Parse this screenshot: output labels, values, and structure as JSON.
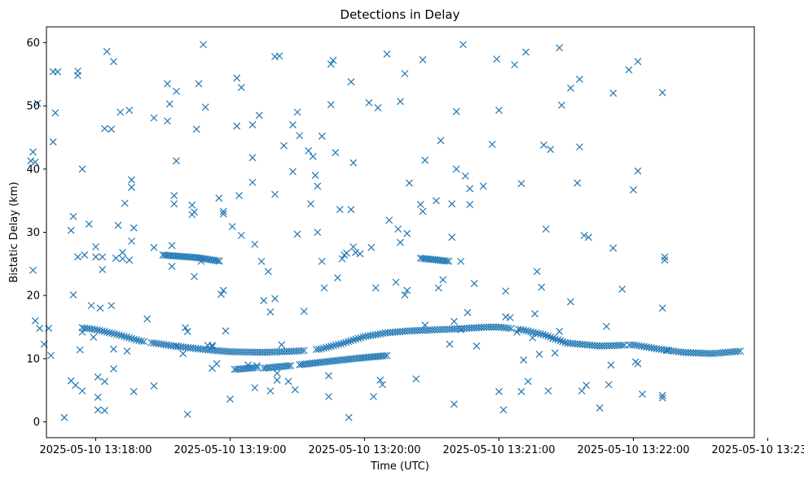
{
  "chart_data": {
    "type": "scatter",
    "title": "Detections in Delay",
    "xlabel": "Time (UTC)",
    "ylabel": "Bistatic Delay (km)",
    "marker": "x",
    "color": "#1f77b4",
    "x_unit": "seconds since 2025-05-10 13:18:00",
    "xlim": [
      -22,
      294
    ],
    "ylim": [
      -2.5,
      62.5
    ],
    "x_ticks": [
      {
        "value": 0,
        "label": "2025-05-10 13:18:00"
      },
      {
        "value": 60,
        "label": "2025-05-10 13:19:00"
      },
      {
        "value": 120,
        "label": "2025-05-10 13:20:00"
      },
      {
        "value": 180,
        "label": "2025-05-10 13:21:00"
      },
      {
        "value": 240,
        "label": "2025-05-10 13:22:00"
      },
      {
        "value": 300,
        "label": "2025-05-10 13:23:00"
      }
    ],
    "y_ticks": [
      {
        "value": 0,
        "label": "0"
      },
      {
        "value": 10,
        "label": "10"
      },
      {
        "value": 20,
        "label": "20"
      },
      {
        "value": 30,
        "label": "30"
      },
      {
        "value": 40,
        "label": "40"
      },
      {
        "value": 50,
        "label": "50"
      },
      {
        "value": 60,
        "label": "60"
      }
    ],
    "tracks": [
      {
        "name": "lower-track",
        "x_start": -6,
        "x_end": 288,
        "step": 1.1,
        "knots": [
          [
            -6,
            14.9
          ],
          [
            0,
            14.6
          ],
          [
            10,
            13.8
          ],
          [
            20,
            12.8
          ],
          [
            35,
            12.0
          ],
          [
            50,
            11.4
          ],
          [
            60,
            11.1
          ],
          [
            75,
            11.0
          ],
          [
            90,
            11.2
          ],
          [
            100,
            11.5
          ],
          [
            110,
            12.4
          ],
          [
            120,
            13.5
          ],
          [
            130,
            14.1
          ],
          [
            140,
            14.4
          ],
          [
            160,
            14.7
          ],
          [
            175,
            15.0
          ],
          [
            180,
            15.0
          ],
          [
            190,
            14.6
          ],
          [
            200,
            13.8
          ],
          [
            210,
            12.5
          ],
          [
            225,
            12.0
          ],
          [
            240,
            12.2
          ],
          [
            250,
            11.6
          ],
          [
            262,
            11.0
          ],
          [
            275,
            10.8
          ],
          [
            288,
            11.2
          ]
        ],
        "gaps": [
          [
            22,
            24
          ],
          [
            94,
            98
          ],
          [
            170,
            171
          ],
          [
            186,
            188
          ],
          [
            236,
            238
          ]
        ]
      },
      {
        "name": "upper-track",
        "x_start": 30,
        "x_end": 56,
        "step": 0.9,
        "knots": [
          [
            30,
            26.4
          ],
          [
            45,
            26.0
          ],
          [
            56,
            25.4
          ]
        ],
        "gaps": []
      },
      {
        "name": "mid-track",
        "x_start": 75,
        "x_end": 130,
        "step": 1.0,
        "knots": [
          [
            75,
            8.5
          ],
          [
            90,
            9.0
          ],
          [
            105,
            9.6
          ],
          [
            115,
            10.0
          ],
          [
            130,
            10.5
          ]
        ],
        "gaps": [
          [
            88,
            90
          ]
        ]
      },
      {
        "name": "late-track",
        "x_start": 145,
        "x_end": 158,
        "step": 0.9,
        "knots": [
          [
            145,
            25.9
          ],
          [
            158,
            25.4
          ]
        ],
        "gaps": []
      },
      {
        "name": "short-track-a",
        "x_start": 62,
        "x_end": 72,
        "step": 1.0,
        "knots": [
          [
            62,
            8.3
          ],
          [
            72,
            8.6
          ]
        ],
        "gaps": []
      }
    ],
    "points": [
      [
        -29,
        41.3
      ],
      [
        -28,
        42.7
      ],
      [
        -27,
        41.1
      ],
      [
        -26,
        50.4
      ],
      [
        -28,
        24.0
      ],
      [
        -27,
        16.0
      ],
      [
        -25,
        14.8
      ],
      [
        -23,
        12.3
      ],
      [
        -21,
        14.8
      ],
      [
        -20,
        10.5
      ],
      [
        -19,
        44.3
      ],
      [
        -19,
        55.4
      ],
      [
        -18,
        48.9
      ],
      [
        -17,
        55.4
      ],
      [
        -14,
        0.7
      ],
      [
        -11,
        6.5
      ],
      [
        -11,
        30.3
      ],
      [
        -10,
        32.5
      ],
      [
        -10,
        20.1
      ],
      [
        -9,
        5.8
      ],
      [
        -8,
        55.5
      ],
      [
        -8,
        54.8
      ],
      [
        -8,
        26.1
      ],
      [
        -7,
        11.4
      ],
      [
        -6,
        40.0
      ],
      [
        -6,
        14.2
      ],
      [
        -6,
        4.9
      ],
      [
        -5,
        26.4
      ],
      [
        -3,
        31.3
      ],
      [
        -2,
        18.4
      ],
      [
        -1,
        13.4
      ],
      [
        0,
        27.7
      ],
      [
        0,
        26.1
      ],
      [
        1,
        7.1
      ],
      [
        1,
        3.9
      ],
      [
        1,
        1.9
      ],
      [
        2,
        18.0
      ],
      [
        3,
        24.1
      ],
      [
        3,
        26.1
      ],
      [
        4,
        46.4
      ],
      [
        4,
        6.4
      ],
      [
        4,
        1.8
      ],
      [
        5,
        58.6
      ],
      [
        7,
        46.3
      ],
      [
        8,
        57.0
      ],
      [
        7,
        18.4
      ],
      [
        8,
        11.5
      ],
      [
        8,
        8.4
      ],
      [
        9,
        25.9
      ],
      [
        10,
        31.1
      ],
      [
        11,
        49.0
      ],
      [
        12,
        26.8
      ],
      [
        12,
        25.8
      ],
      [
        13,
        34.6
      ],
      [
        14,
        11.2
      ],
      [
        15,
        49.3
      ],
      [
        15,
        25.6
      ],
      [
        16,
        37.1
      ],
      [
        16,
        38.3
      ],
      [
        16,
        28.6
      ],
      [
        17,
        30.7
      ],
      [
        17,
        4.8
      ],
      [
        23,
        16.3
      ],
      [
        26,
        48.1
      ],
      [
        26,
        27.6
      ],
      [
        26,
        5.7
      ],
      [
        32,
        53.5
      ],
      [
        32,
        47.6
      ],
      [
        33,
        50.3
      ],
      [
        34,
        24.6
      ],
      [
        34,
        27.9
      ],
      [
        35,
        34.5
      ],
      [
        35,
        35.8
      ],
      [
        36,
        52.3
      ],
      [
        36,
        41.3
      ],
      [
        36,
        12.0
      ],
      [
        39,
        10.8
      ],
      [
        40,
        14.9
      ],
      [
        41,
        14.3
      ],
      [
        41,
        1.2
      ],
      [
        43,
        34.3
      ],
      [
        43,
        32.8
      ],
      [
        44,
        33.2
      ],
      [
        44,
        23.0
      ],
      [
        45,
        46.3
      ],
      [
        46,
        53.5
      ],
      [
        47,
        25.4
      ],
      [
        48,
        59.7
      ],
      [
        49,
        49.8
      ],
      [
        50,
        12.1
      ],
      [
        52,
        12.1
      ],
      [
        52,
        8.5
      ],
      [
        52,
        11.9
      ],
      [
        54,
        9.2
      ],
      [
        55,
        35.4
      ],
      [
        56,
        20.2
      ],
      [
        57,
        20.8
      ],
      [
        57,
        33.3
      ],
      [
        57,
        32.9
      ],
      [
        58,
        14.4
      ],
      [
        60,
        3.6
      ],
      [
        61,
        30.9
      ],
      [
        63,
        54.4
      ],
      [
        63,
        46.8
      ],
      [
        64,
        35.8
      ],
      [
        65,
        52.9
      ],
      [
        65,
        29.5
      ],
      [
        68,
        9.0
      ],
      [
        70,
        37.9
      ],
      [
        70,
        41.8
      ],
      [
        70,
        47.0
      ],
      [
        71,
        28.1
      ],
      [
        71,
        5.4
      ],
      [
        72,
        8.9
      ],
      [
        73,
        48.5
      ],
      [
        74,
        25.4
      ],
      [
        75,
        19.2
      ],
      [
        77,
        23.8
      ],
      [
        78,
        4.9
      ],
      [
        78,
        17.4
      ],
      [
        80,
        57.8
      ],
      [
        80,
        36.0
      ],
      [
        80,
        19.5
      ],
      [
        81,
        6.6
      ],
      [
        81,
        7.7
      ],
      [
        82,
        57.9
      ],
      [
        83,
        12.2
      ],
      [
        84,
        43.7
      ],
      [
        86,
        6.4
      ],
      [
        88,
        39.6
      ],
      [
        88,
        47.0
      ],
      [
        89,
        5.1
      ],
      [
        90,
        49.0
      ],
      [
        90,
        29.7
      ],
      [
        91,
        45.3
      ],
      [
        93,
        17.5
      ],
      [
        95,
        42.9
      ],
      [
        96,
        34.5
      ],
      [
        97,
        42.0
      ],
      [
        98,
        39.0
      ],
      [
        99,
        30.0
      ],
      [
        99,
        37.3
      ],
      [
        101,
        45.2
      ],
      [
        101,
        25.4
      ],
      [
        102,
        21.2
      ],
      [
        104,
        4.0
      ],
      [
        104,
        7.3
      ],
      [
        105,
        56.6
      ],
      [
        105,
        50.2
      ],
      [
        106,
        57.2
      ],
      [
        107,
        42.6
      ],
      [
        108,
        22.8
      ],
      [
        109,
        33.6
      ],
      [
        110,
        25.8
      ],
      [
        111,
        26.4
      ],
      [
        112,
        26.7
      ],
      [
        113,
        0.7
      ],
      [
        114,
        33.6
      ],
      [
        114,
        53.8
      ],
      [
        115,
        41.0
      ],
      [
        115,
        27.7
      ],
      [
        116,
        26.8
      ],
      [
        118,
        26.6
      ],
      [
        122,
        50.5
      ],
      [
        123,
        27.6
      ],
      [
        124,
        4.0
      ],
      [
        125,
        21.2
      ],
      [
        126,
        49.7
      ],
      [
        127,
        6.6
      ],
      [
        128,
        5.9
      ],
      [
        130,
        58.2
      ],
      [
        131,
        31.9
      ],
      [
        134,
        22.1
      ],
      [
        135,
        30.5
      ],
      [
        136,
        28.4
      ],
      [
        136,
        50.7
      ],
      [
        138,
        55.1
      ],
      [
        138,
        20.1
      ],
      [
        139,
        29.8
      ],
      [
        139,
        20.8
      ],
      [
        140,
        37.8
      ],
      [
        143,
        6.8
      ],
      [
        145,
        34.4
      ],
      [
        146,
        57.3
      ],
      [
        146,
        33.3
      ],
      [
        147,
        41.4
      ],
      [
        147,
        15.3
      ],
      [
        152,
        35.0
      ],
      [
        153,
        21.2
      ],
      [
        154,
        44.5
      ],
      [
        155,
        22.5
      ],
      [
        158,
        12.3
      ],
      [
        159,
        34.5
      ],
      [
        159,
        29.2
      ],
      [
        160,
        2.8
      ],
      [
        160,
        15.9
      ],
      [
        161,
        40.0
      ],
      [
        161,
        49.1
      ],
      [
        163,
        25.4
      ],
      [
        163,
        14.6
      ],
      [
        164,
        59.7
      ],
      [
        165,
        38.9
      ],
      [
        166,
        17.3
      ],
      [
        167,
        36.9
      ],
      [
        167,
        34.4
      ],
      [
        169,
        21.9
      ],
      [
        170,
        12.0
      ],
      [
        173,
        37.3
      ],
      [
        177,
        43.9
      ],
      [
        179,
        57.4
      ],
      [
        180,
        4.8
      ],
      [
        180,
        49.3
      ],
      [
        182,
        1.9
      ],
      [
        183,
        20.7
      ],
      [
        183,
        16.6
      ],
      [
        185,
        16.5
      ],
      [
        187,
        56.5
      ],
      [
        188,
        14.2
      ],
      [
        190,
        37.7
      ],
      [
        190,
        4.8
      ],
      [
        191,
        9.8
      ],
      [
        192,
        58.5
      ],
      [
        193,
        6.4
      ],
      [
        195,
        13.3
      ],
      [
        196,
        17.1
      ],
      [
        197,
        23.8
      ],
      [
        198,
        10.7
      ],
      [
        199,
        21.3
      ],
      [
        200,
        43.8
      ],
      [
        201,
        30.5
      ],
      [
        202,
        4.9
      ],
      [
        203,
        43.1
      ],
      [
        204,
        13.2
      ],
      [
        205,
        10.9
      ],
      [
        207,
        14.3
      ],
      [
        207,
        59.2
      ],
      [
        208,
        50.1
      ],
      [
        212,
        19.0
      ],
      [
        212,
        52.8
      ],
      [
        215,
        37.8
      ],
      [
        216,
        54.2
      ],
      [
        216,
        43.5
      ],
      [
        217,
        4.9
      ],
      [
        218,
        29.5
      ],
      [
        219,
        5.8
      ],
      [
        220,
        29.2
      ],
      [
        225,
        2.2
      ],
      [
        228,
        15.1
      ],
      [
        229,
        5.9
      ],
      [
        230,
        9.0
      ],
      [
        231,
        52.0
      ],
      [
        231,
        27.5
      ],
      [
        235,
        21.0
      ],
      [
        238,
        55.7
      ],
      [
        240,
        36.7
      ],
      [
        241,
        9.5
      ],
      [
        242,
        57.0
      ],
      [
        242,
        39.7
      ],
      [
        242,
        9.2
      ],
      [
        244,
        4.4
      ],
      [
        253,
        52.1
      ],
      [
        253,
        18.0
      ],
      [
        253,
        4.2
      ],
      [
        253,
        3.8
      ],
      [
        254,
        26.1
      ],
      [
        254,
        25.6
      ],
      [
        255,
        11.3
      ]
    ]
  }
}
